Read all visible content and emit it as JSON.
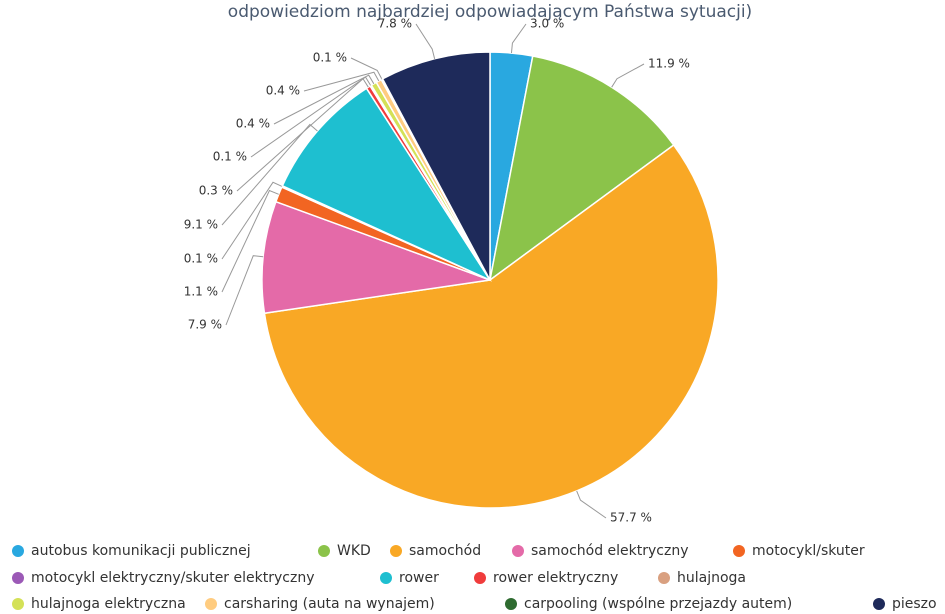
{
  "chart_data": {
    "type": "pie",
    "title": "odpowiedziom najbardziej odpowiadającym Państwa sytuacji)",
    "categories": [
      "autobus komunikacji publicznej",
      "WKD",
      "samochód",
      "samochód elektryczny",
      "motocykl/skuter",
      "motocykl elektryczny/skuter elektryczny",
      "rower",
      "rower elektryczny",
      "hulajnoga",
      "hulajnoga elektryczna",
      "carsharing (auta na wynajem)",
      "carpooling (wspólne przejazdy autem)",
      "pieszo"
    ],
    "values": [
      3.0,
      11.9,
      57.7,
      7.9,
      1.1,
      0.1,
      9.1,
      0.3,
      0.1,
      0.4,
      0.4,
      0.1,
      7.8
    ],
    "value_labels": [
      "3.0 %",
      "11.9 %",
      "57.7 %",
      "7.9 %",
      "1.1 %",
      "0.1 %",
      "9.1 %",
      "0.3 %",
      "0.1 %",
      "0.4 %",
      "0.4 %",
      "0.1 %",
      "7.8 %"
    ],
    "colors": [
      "#29a8e0",
      "#8bc34a",
      "#f9a825",
      "#e46aa8",
      "#f26522",
      "#9b59b6",
      "#1ebfd0",
      "#f03c3c",
      "#d9a080",
      "#d4e157",
      "#ffcc80",
      "#2e6b30",
      "#1e2a5a"
    ],
    "legend": "bottom"
  }
}
